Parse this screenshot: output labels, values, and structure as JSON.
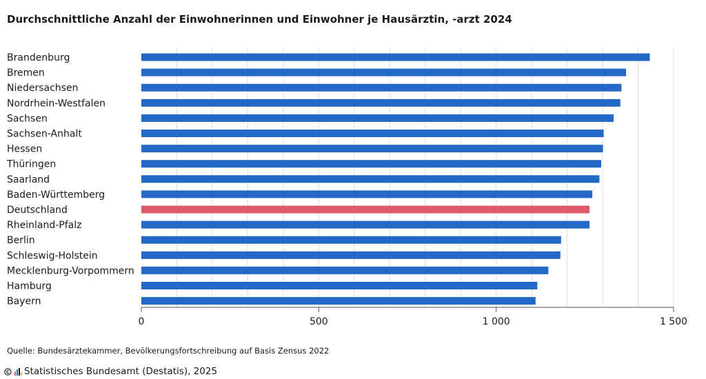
{
  "chart_data": {
    "type": "bar",
    "orientation": "horizontal",
    "title": "Durchschnittliche Anzahl der Einwohnerinnen und Einwohner je Hausärztin, -arzt 2024",
    "categories": [
      "Brandenburg",
      "Bremen",
      "Niedersachsen",
      "Nordrhein-Westfalen",
      "Sachsen",
      "Sachsen-Anhalt",
      "Hessen",
      "Thüringen",
      "Saarland",
      "Baden-Württemberg",
      "Deutschland",
      "Rheinland-Pfalz",
      "Berlin",
      "Schleswig-Holstein",
      "Mecklenburg-Vorpommern",
      "Hamburg",
      "Bayern"
    ],
    "values": [
      1433,
      1366,
      1353,
      1350,
      1331,
      1303,
      1301,
      1296,
      1291,
      1271,
      1263,
      1263,
      1183,
      1181,
      1147,
      1116,
      1111
    ],
    "highlight": "Deutschland",
    "xlim": [
      0,
      1500
    ],
    "xticks": [
      0,
      500,
      1000,
      1500
    ],
    "xtick_labels": [
      "0",
      "500",
      "1 000",
      "1 500"
    ],
    "grid": true,
    "colors": {
      "bar": "#2468c8",
      "highlight": "#e2596b",
      "grid": "#dddddd",
      "axis": "#555555"
    }
  },
  "source": "Quelle: Bundesärztekammer, Bevölkerungsfortschreibung auf Basis Zensus 2022",
  "copyright": "Statistisches Bundesamt (Destatis), 2025",
  "icons": {
    "copyright": "copyright-icon",
    "logo": "destatis-logo-icon"
  }
}
